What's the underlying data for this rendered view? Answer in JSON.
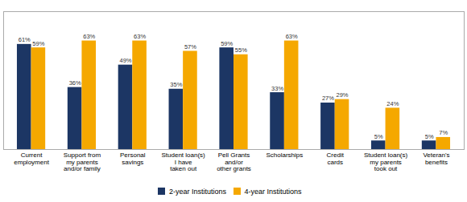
{
  "chart_data": {
    "type": "bar",
    "categories": [
      "Current\nemployment",
      "Support from\nmy parents\nand/or family",
      "Personal\nsavings",
      "Student loan(s)\nI have\ntaken out",
      "Pell Grants\nand/or\nother grants",
      "Scholarships",
      "Credit\ncards",
      "Student loan(s)\nmy parents\ntook out",
      "Veteran's\nbenefits"
    ],
    "series": [
      {
        "name": "2-year Institutions",
        "color": "#1c3664",
        "values": [
          61,
          36,
          49,
          35,
          59,
          33,
          27,
          5,
          5
        ],
        "value_labels": [
          "61%",
          "36%",
          "49%",
          "35%",
          "59%",
          "33%",
          "27%",
          "5%",
          "5%"
        ]
      },
      {
        "name": "4-year Institutions",
        "color": "#f5a800",
        "values": [
          59,
          63,
          63,
          57,
          55,
          63,
          29,
          24,
          7
        ],
        "value_labels": [
          "59%",
          "63%",
          "63%",
          "57%",
          "55%",
          "63%",
          "29%",
          "24%",
          "7%"
        ]
      }
    ],
    "ylim": [
      0,
      80
    ],
    "data_labels": true,
    "tick_labels": "x",
    "grid": false,
    "legend": "bottom"
  }
}
